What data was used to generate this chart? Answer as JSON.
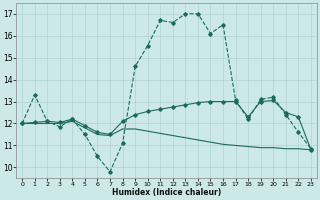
{
  "xlabel": "Humidex (Indice chaleur)",
  "xlim": [
    -0.5,
    23.5
  ],
  "ylim": [
    9.5,
    17.5
  ],
  "xticks": [
    0,
    1,
    2,
    3,
    4,
    5,
    6,
    7,
    8,
    9,
    10,
    11,
    12,
    13,
    14,
    15,
    16,
    17,
    18,
    19,
    20,
    21,
    22,
    23
  ],
  "yticks": [
    10,
    11,
    12,
    13,
    14,
    15,
    16,
    17
  ],
  "bg_color": "#cce8e8",
  "grid_color": "#aacccc",
  "line_color": "#1a6b5a",
  "line1_x": [
    0,
    1,
    2,
    3,
    4,
    5,
    6,
    7,
    8,
    9,
    10,
    11,
    12,
    13,
    14,
    15,
    16,
    17,
    18,
    19,
    20,
    21,
    22,
    23
  ],
  "line1_y": [
    12.0,
    13.3,
    12.1,
    11.85,
    12.2,
    11.5,
    10.5,
    9.8,
    11.1,
    14.6,
    15.55,
    16.7,
    16.6,
    17.0,
    17.0,
    16.1,
    16.5,
    13.05,
    12.2,
    13.1,
    13.2,
    12.4,
    11.6,
    10.85
  ],
  "line2_x": [
    0,
    1,
    2,
    3,
    4,
    5,
    6,
    7,
    8,
    9,
    10,
    11,
    12,
    13,
    14,
    15,
    16,
    17,
    18,
    19,
    20,
    21,
    22,
    23
  ],
  "line2_y": [
    12.0,
    12.05,
    12.1,
    12.05,
    12.2,
    11.9,
    11.6,
    11.5,
    12.1,
    12.4,
    12.55,
    12.65,
    12.75,
    12.85,
    12.95,
    13.0,
    13.0,
    13.0,
    12.3,
    13.0,
    13.05,
    12.5,
    12.3,
    10.8
  ],
  "line3_x": [
    0,
    1,
    2,
    3,
    4,
    5,
    6,
    7,
    8,
    9,
    10,
    11,
    12,
    13,
    14,
    15,
    16,
    17,
    18,
    19,
    20,
    21,
    22,
    23
  ],
  "line3_y": [
    12.0,
    12.0,
    12.0,
    12.0,
    12.1,
    11.8,
    11.5,
    11.45,
    11.75,
    11.75,
    11.65,
    11.55,
    11.45,
    11.35,
    11.25,
    11.15,
    11.05,
    11.0,
    10.95,
    10.9,
    10.9,
    10.85,
    10.85,
    10.8
  ]
}
